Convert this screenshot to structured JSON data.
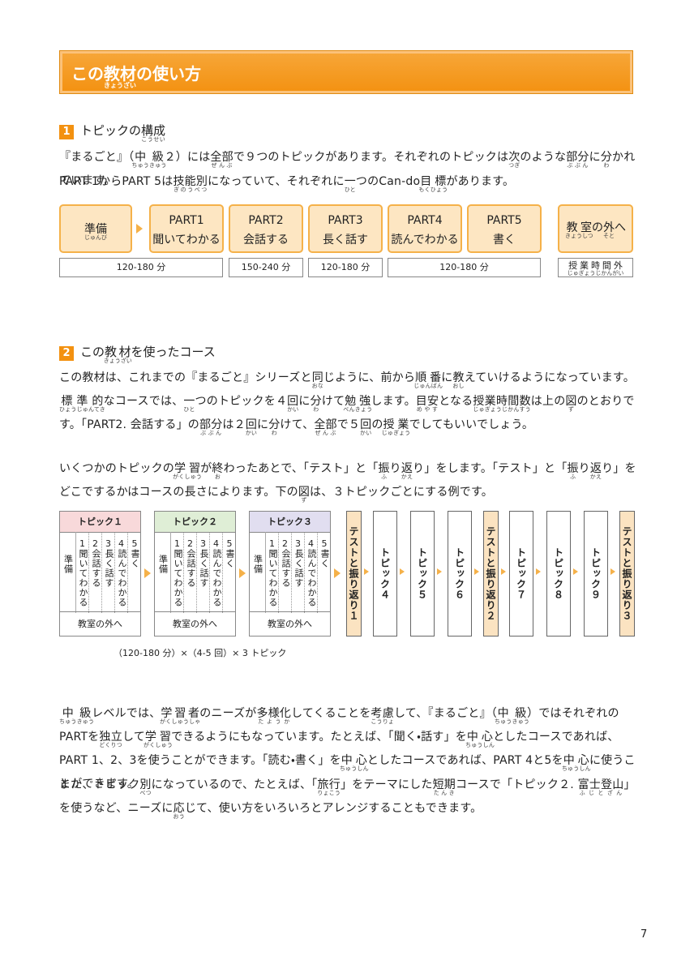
{
  "header": {
    "title": [
      [
        "この",
        ""
      ],
      [
        "教材",
        "きょうざい"
      ],
      [
        "の使い方",
        ""
      ]
    ]
  },
  "section1": {
    "number": "1",
    "heading": [
      [
        "トピックの",
        ""
      ],
      [
        "構成",
        "こうせい"
      ]
    ],
    "paragraphs": [
      [
        "『まるごと』（",
        [
          "中級",
          "ちゅうきゅう"
        ],
        "２）には",
        [
          "全部",
          "ぜんぶ"
        ],
        "で９つのトピックがあります。それぞれのトピックは",
        [
          "次",
          "つぎ"
        ],
        "のような",
        [
          "部分",
          "ぶぶん"
        ],
        "に",
        [
          "分",
          "わ"
        ],
        "かれています。"
      ],
      [
        "PART 1からPART 5は",
        [
          "技能別",
          "ぎのうべつ"
        ],
        "になっていて、それぞれに",
        [
          "一",
          "ひと"
        ],
        "つのCan-do",
        [
          "目標",
          "もくひょう"
        ],
        "があります。"
      ]
    ],
    "diagram": {
      "prep": [
        [
          "準備",
          "じゅんび"
        ]
      ],
      "parts": [
        {
          "label": "PART1",
          "name": "聞いてわかる"
        },
        {
          "label": "PART2",
          "name": "会話する"
        },
        {
          "label": "PART3",
          "name": "長く話す"
        },
        {
          "label": "PART4",
          "name": "読んでわかる"
        },
        {
          "label": "PART5",
          "name": "書く"
        }
      ],
      "outside": [
        [
          "教室",
          "きょうしつ"
        ],
        "の",
        [
          "外",
          "そと"
        ],
        "へ"
      ],
      "durations": [
        "120-180 分",
        "150-240 分",
        "120-180 分",
        "120-180 分"
      ],
      "outside_duration": [
        [
          "授業時間外",
          "じゅぎょうじかんがい"
        ]
      ]
    }
  },
  "section2": {
    "number": "2",
    "heading": [
      "この",
      [
        "教材",
        "きょうざい"
      ],
      "を使ったコース"
    ],
    "paragraphs": [
      [
        "この教材は、これまでの『まるごと』シリーズと",
        [
          "同",
          "おな"
        ],
        "じように、前から",
        [
          "順番",
          "じゅんばん"
        ],
        "に",
        [
          "教",
          "おし"
        ],
        "えていけるようになっています。",
        [
          "標準的",
          "ひょうじゅんてき"
        ],
        "なコースでは、",
        [
          "一",
          "ひと"
        ],
        "つのトピックを４",
        [
          "回",
          "かい"
        ],
        "に",
        [
          "分",
          "わ"
        ],
        "けて",
        [
          "勉強",
          "べんきょう"
        ],
        "します。",
        [
          "目安",
          "めやす"
        ],
        "となる",
        [
          "授業時間数",
          "じゅぎょうじかんすう"
        ],
        "は上の",
        [
          "図",
          "ず"
        ],
        "のとおりです。「PART2. 会話する」の",
        [
          "部分",
          "ぶぶん"
        ],
        "は２",
        [
          "回",
          "かい"
        ],
        "に",
        [
          "分",
          "わ"
        ],
        "けて、",
        [
          "全部",
          "ぜんぶ"
        ],
        "で５",
        [
          "回",
          "かい"
        ],
        "の",
        [
          "授業",
          "じゅぎょう"
        ],
        "でしてもいいでしょう。"
      ],
      [
        "いくつかのトピックの",
        [
          "学習",
          "がくしゅう"
        ],
        "が",
        [
          "終",
          "お"
        ],
        "わったあとで、「テスト」と「",
        [
          "振",
          "ふ"
        ],
        "り",
        [
          "返",
          "かえ"
        ],
        "り」をします。「テスト」と「",
        [
          "振",
          "ふ"
        ],
        "り",
        [
          "返",
          "かえ"
        ],
        "り」をどこでするかはコースの長さによります。下の",
        [
          "図",
          "ず"
        ],
        "は、３トピックごとにする例です。"
      ],
      [
        "",
        [
          "中級",
          "ちゅうきゅう"
        ],
        "レベルでは、",
        [
          "学習者",
          "がくしゅうしゃ"
        ],
        "のニーズが",
        [
          "多様化",
          "たようか"
        ],
        "してくることを",
        [
          "考慮",
          "こうりょ"
        ],
        "して、『まるごと』（",
        [
          "中級",
          "ちゅうきゅう"
        ],
        "）ではそれぞれのPARTを",
        [
          "独立",
          "どくりつ"
        ],
        "して",
        [
          "学習",
          "がくしゅう"
        ],
        "できるようにもなっています。たとえば、「聞く・話す」を",
        [
          "中心",
          "ちゅうしん"
        ],
        "としたコースであれば、PART 1、2、3を使うことができます。「読む・書く」を",
        [
          "中心",
          "ちゅうしん"
        ],
        "としたコースであれば、PART 4と5を",
        [
          "中心",
          "ちゅうしん"
        ],
        "に使うことができます。"
      ],
      [
        "また、トピック",
        [
          "別",
          "べつ"
        ],
        "になっているので、たとえば、「",
        [
          "旅行",
          "りょこう"
        ],
        "」をテーマにした",
        [
          "短期",
          "たんき"
        ],
        "コースで「トピック２. ",
        [
          "富士登山",
          "ふじとざん"
        ],
        "」を使うなど、ニーズに",
        [
          "応",
          "おう"
        ],
        "じて、使い方をいろいろとアレンジすることもできます。"
      ]
    ],
    "diagram": {
      "topics": [
        {
          "title": "トピック１",
          "color": "#f8d9da"
        },
        {
          "title": "トピック２",
          "color": "#dfeed6"
        },
        {
          "title": "トピック３",
          "color": "#e1def0"
        }
      ],
      "prep": "準備",
      "columns": [
        {
          "num": "1",
          "label": "聞いてわかる"
        },
        {
          "num": "2",
          "label": "会話する"
        },
        {
          "num": "3",
          "label": "長く話す"
        },
        {
          "num": "4",
          "label": "読んでわかる"
        },
        {
          "num": "5",
          "label": "書く"
        }
      ],
      "outside": "教室の外へ",
      "sequence": [
        {
          "label": "テストと振り返り１",
          "color": "#fbe3c1"
        },
        {
          "label": "トピック４",
          "color": "#ffffff"
        },
        {
          "label": "トピック５",
          "color": "#ffffff"
        },
        {
          "label": "トピック６",
          "color": "#ffffff"
        },
        {
          "label": "テストと振り返り２",
          "color": "#fbe3c1"
        },
        {
          "label": "トピック７",
          "color": "#ffffff"
        },
        {
          "label": "トピック８",
          "color": "#ffffff"
        },
        {
          "label": "トピック９",
          "color": "#ffffff"
        },
        {
          "label": "テストと振り返り３",
          "color": "#fbe3c1"
        }
      ],
      "caption": "（120-180 分）×（4-5 回）× 3 トピック"
    }
  },
  "page_number": "7"
}
